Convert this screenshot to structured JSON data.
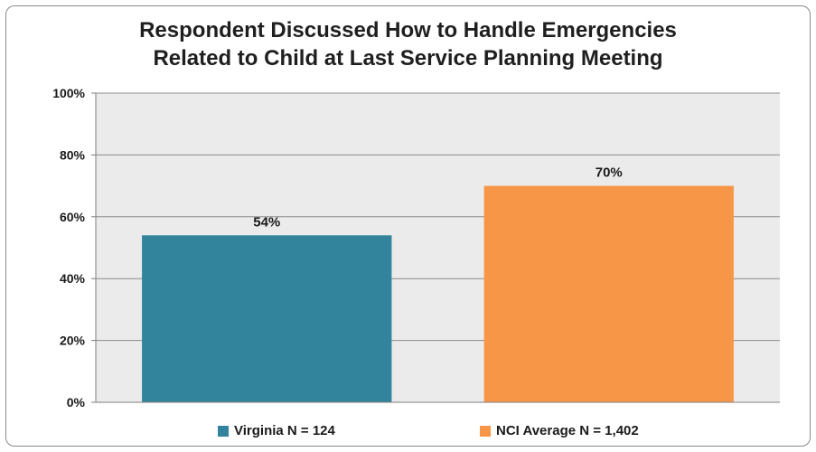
{
  "chart_data": {
    "type": "bar",
    "title_lines": [
      "Respondent Discussed How to Handle Emergencies",
      "Related to Child at Last Service Planning Meeting"
    ],
    "categories": [
      "Virginia N = 124",
      "NCI Average N = 1,402"
    ],
    "values": [
      54,
      70
    ],
    "value_labels": [
      "54%",
      "70%"
    ],
    "colors": [
      "#31849b",
      "#f79646"
    ],
    "ylim": [
      0,
      100
    ],
    "yticks": [
      0,
      20,
      40,
      60,
      80,
      100
    ],
    "ytick_labels": [
      "0%",
      "20%",
      "40%",
      "60%",
      "80%",
      "100%"
    ],
    "grid": true,
    "plot_background": "#ebebeb",
    "legend": {
      "position": "bottom",
      "entries": [
        "Virginia N = 124",
        "NCI Average N = 1,402"
      ]
    },
    "xlabel": "",
    "ylabel": ""
  }
}
